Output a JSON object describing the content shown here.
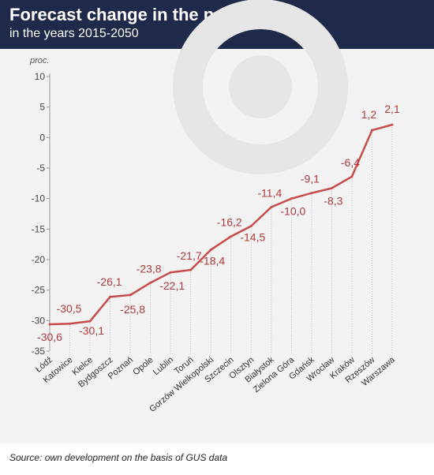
{
  "header": {
    "title": "Forecast change in the population,",
    "subtitle": "in the years 2015-2050"
  },
  "footer": {
    "source": "Source: own development on the basis of GUS data"
  },
  "colors": {
    "header_bg": "#1f2a4a",
    "line": "#c94b4b",
    "label": "#b23a3a",
    "grid": "#bdbdbd",
    "watermark": "#e6e6e6"
  },
  "chart_data": {
    "type": "line",
    "unit_label": "proc.",
    "categories": [
      "Łódź",
      "Katowice",
      "Kielce",
      "Bydgoszcz",
      "Poznań",
      "Opole",
      "Lublin",
      "Toruń",
      "Gorzów Wielkopolski",
      "Szczecin",
      "Olsztyn",
      "Białystok",
      "Zielona Góra",
      "Gdańsk",
      "Wrocław",
      "Kraków",
      "Rzeszów",
      "Warszawa"
    ],
    "series": [
      {
        "values": [
          -30.6,
          -30.5,
          -30.1,
          -26.1,
          -25.8,
          -23.8,
          -22.1,
          -21.7,
          -18.4,
          -16.2,
          -14.5,
          -11.4,
          -10.0,
          -9.1,
          -8.3,
          -6.4,
          1.2,
          2.1
        ]
      }
    ],
    "data_labels": [
      "-30,6",
      "-30,5",
      "-30,1",
      "-26,1",
      "-25,8",
      "-23,8",
      "-22,1",
      "-21,7",
      "-18,4",
      "-16,2",
      "-14,5",
      "-11,4",
      "-10,0",
      "-9,1",
      "-8,3",
      "-6,4",
      "1,2",
      "2,1"
    ],
    "yticks": [
      10,
      5,
      0,
      -5,
      -10,
      -15,
      -20,
      -25,
      -30,
      -35
    ],
    "ytick_labels": [
      "10",
      "5",
      "0",
      "-5",
      "-10",
      "-15",
      "-20",
      "-25",
      "-30",
      "-35"
    ],
    "ylim": [
      -35,
      10
    ],
    "grid": "vertical-dotted"
  }
}
